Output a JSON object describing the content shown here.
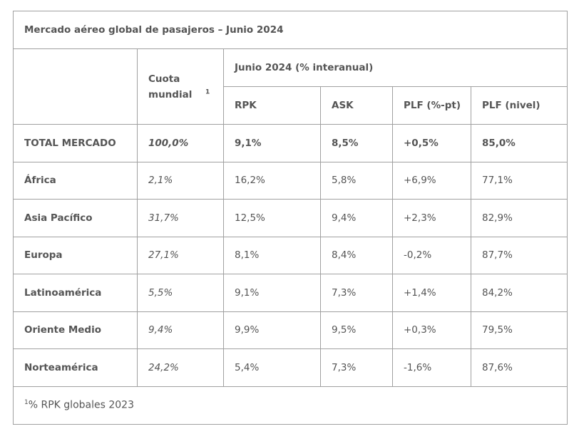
{
  "table_title": "Mercado aéreo global de pasajeros – Junio 2024",
  "headers": {
    "share_label": "Cuota mundial",
    "share_sup": "1",
    "period_label": "Junio 2024 (% interanual)",
    "cols": [
      "RPK",
      "ASK",
      "PLF (%-pt)",
      "PLF (nivel)"
    ]
  },
  "rows": [
    {
      "region": "TOTAL MERCADO",
      "share": "100,0%",
      "rpk": "9,1%",
      "ask": "8,5%",
      "plf_pt": "+0,5%",
      "plf_level": "85,0%"
    },
    {
      "region": "África",
      "share": "2,1%",
      "rpk": "16,2%",
      "ask": "5,8%",
      "plf_pt": "+6,9%",
      "plf_level": "77,1%"
    },
    {
      "region": "Asia Pacífico",
      "share": "31,7%",
      "rpk": "12,5%",
      "ask": "9,4%",
      "plf_pt": "+2,3%",
      "plf_level": "82,9%"
    },
    {
      "region": "Europa",
      "share": "27,1%",
      "rpk": "8,1%",
      "ask": "8,4%",
      "plf_pt": "-0,2%",
      "plf_level": "87,7%"
    },
    {
      "region": "Latinoamérica",
      "share": "5,5%",
      "rpk": "9,1%",
      "ask": "7,3%",
      "plf_pt": "+1,4%",
      "plf_level": "84,2%"
    },
    {
      "region": "Oriente Medio",
      "share": "9,4%",
      "rpk": "9,9%",
      "ask": "9,5%",
      "plf_pt": "+0,3%",
      "plf_level": "79,5%"
    },
    {
      "region": "Norteamérica",
      "share": "24,2%",
      "rpk": "5,4%",
      "ask": "7,3%",
      "plf_pt": "-1,6%",
      "plf_level": "87,6%"
    }
  ],
  "footnote": {
    "sup": "1",
    "text": "% RPK globales 2023"
  }
}
